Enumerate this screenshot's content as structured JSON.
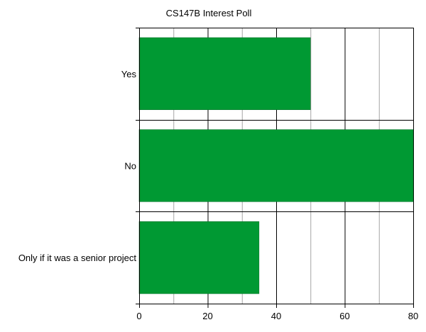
{
  "chart_data": {
    "type": "bar",
    "orientation": "horizontal",
    "title": "CS147B Interest Poll",
    "categories": [
      "Yes",
      "No",
      "Only if it was a senior project"
    ],
    "values": [
      50,
      80,
      35
    ],
    "xlim": [
      0,
      80
    ],
    "x_ticks": [
      0,
      20,
      40,
      60,
      80
    ],
    "x_minor_ticks": [
      10,
      30,
      50,
      70
    ],
    "xlabel": "",
    "ylabel": "",
    "grid": true,
    "legend": "none",
    "bar_color": "#009933",
    "bar_outline_color": "#006b23",
    "major_grid_color": "#000000",
    "minor_grid_color": "#a6a6a6"
  }
}
